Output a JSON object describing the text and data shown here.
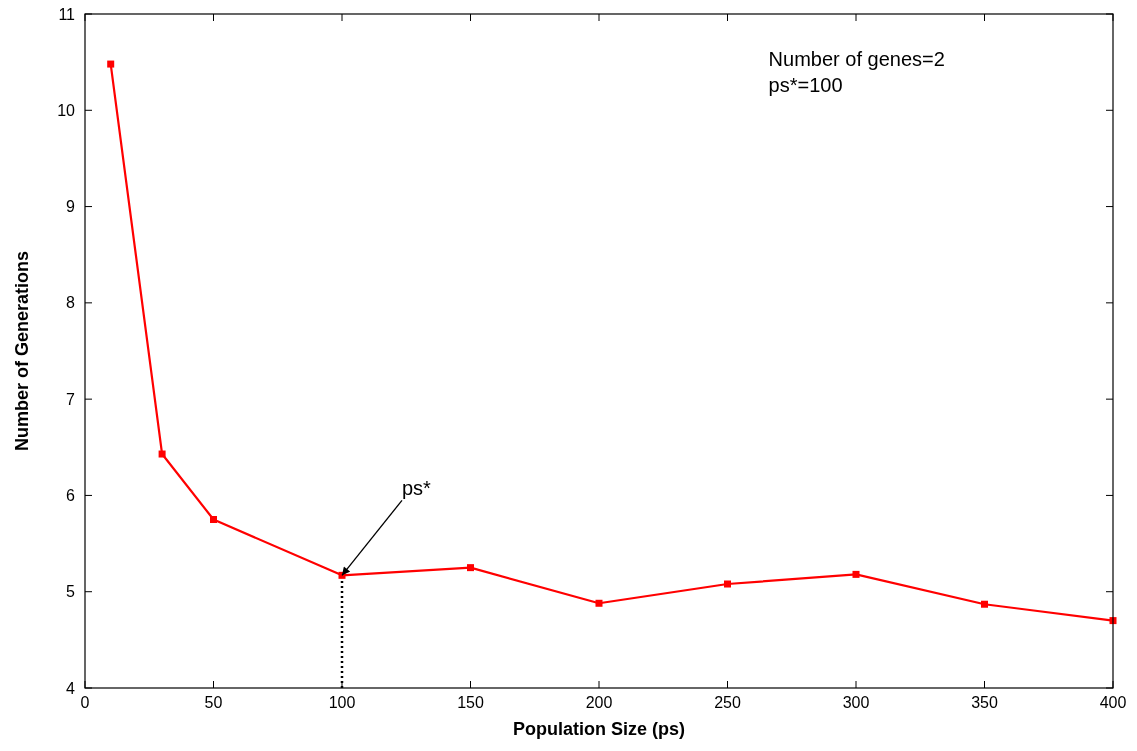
{
  "chart_data": {
    "type": "line",
    "xlabel": "Population Size (ps)",
    "ylabel": "Number of Generations",
    "x": [
      10,
      30,
      50,
      100,
      150,
      200,
      250,
      300,
      350,
      400
    ],
    "series": [
      {
        "color": "#ff0000",
        "values": [
          10.48,
          6.43,
          5.75,
          5.17,
          5.25,
          4.88,
          5.08,
          5.18,
          4.87,
          4.7
        ]
      }
    ],
    "xlim": [
      0,
      400
    ],
    "xticks": [
      0,
      50,
      100,
      150,
      200,
      250,
      300,
      350,
      400
    ],
    "ylim": [
      4,
      11
    ],
    "yticks": [
      4,
      5,
      6,
      7,
      8,
      9,
      10,
      11
    ],
    "marker": "square",
    "line_style": "solid",
    "grid": false,
    "ref_lines": [
      {
        "axis": "x",
        "value": 100,
        "line_style": "dotted",
        "color": "#000000"
      }
    ],
    "annotations": [
      {
        "text": "ps*",
        "x": 100,
        "y": 5.17
      },
      "Number of genes=2",
      "ps*=100"
    ]
  }
}
